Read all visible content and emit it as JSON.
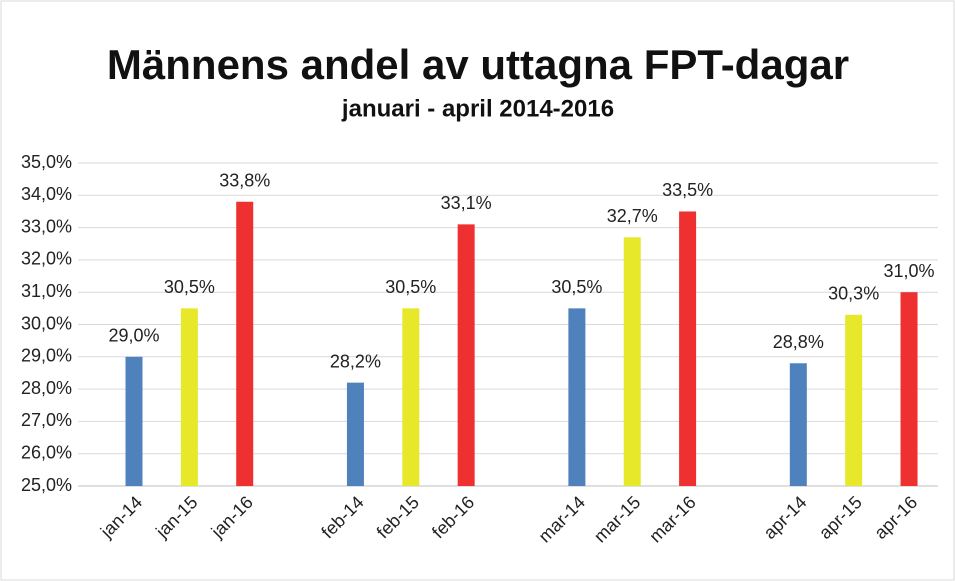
{
  "chart_data": {
    "type": "bar",
    "title": "Männens andel av uttagna FPT-dagar",
    "subtitle": "januari - april 2014-2016",
    "categories": [
      "jan-14",
      "jan-15",
      "jan-16",
      null,
      "feb-14",
      "feb-15",
      "feb-16",
      null,
      "mar-14",
      "mar-15",
      "mar-16",
      null,
      "apr-14",
      "apr-15",
      "apr-16"
    ],
    "values": [
      29.0,
      30.5,
      33.8,
      null,
      28.2,
      30.5,
      33.1,
      null,
      30.5,
      32.7,
      33.5,
      null,
      28.8,
      30.3,
      31.0
    ],
    "value_labels": [
      "29,0%",
      "30,5%",
      "33,8%",
      null,
      "28,2%",
      "30,5%",
      "33,1%",
      null,
      "30,5%",
      "32,7%",
      "33,5%",
      null,
      "28,8%",
      "30,3%",
      "31,0%"
    ],
    "colors": [
      "#4f81bd",
      "#e8e82a",
      "#ee3030"
    ],
    "ylim": [
      25,
      35
    ],
    "yticks": [
      {
        "value": 25,
        "label": "25,0%"
      },
      {
        "value": 26,
        "label": "26,0%"
      },
      {
        "value": 27,
        "label": "27,0%"
      },
      {
        "value": 28,
        "label": "28,0%"
      },
      {
        "value": 29,
        "label": "29,0%"
      },
      {
        "value": 30,
        "label": "30,0%"
      },
      {
        "value": 31,
        "label": "31,0%"
      },
      {
        "value": 32,
        "label": "32,0%"
      },
      {
        "value": 33,
        "label": "33,0%"
      },
      {
        "value": 34,
        "label": "34,0%"
      },
      {
        "value": 35,
        "label": "35,0%"
      }
    ],
    "grid": true
  }
}
